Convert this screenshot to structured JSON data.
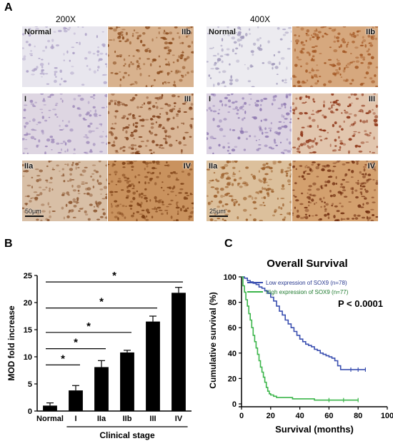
{
  "panel_a": {
    "letter": "A",
    "mag_left": "200X",
    "mag_right": "400X",
    "tiles_left": [
      {
        "label": "Normal",
        "side": "left",
        "color": "#e8e6ee",
        "stain": "#a99cc4",
        "density": 0.25
      },
      {
        "label": "IIb",
        "side": "right",
        "color": "#d8b28e",
        "stain": "#8a4a1c",
        "density": 0.65
      },
      {
        "label": "I",
        "side": "left",
        "color": "#ded6e2",
        "stain": "#9b86b8",
        "density": 0.45
      },
      {
        "label": "III",
        "side": "right",
        "color": "#d9b696",
        "stain": "#7a3a14",
        "density": 0.7
      },
      {
        "label": "IIa",
        "side": "left",
        "color": "#d8bfa6",
        "stain": "#8c5630",
        "density": 0.6
      },
      {
        "label": "IV",
        "side": "right",
        "color": "#c9925e",
        "stain": "#7a3d12",
        "density": 0.85
      }
    ],
    "tiles_right": [
      {
        "label": "Normal",
        "side": "left",
        "color": "#ecebf0",
        "stain": "#9d95b8",
        "density": 0.3
      },
      {
        "label": "IIb",
        "side": "right",
        "color": "#d6a87e",
        "stain": "#a0521e",
        "density": 0.75
      },
      {
        "label": "I",
        "side": "left",
        "color": "#dcd3e2",
        "stain": "#8e78b0",
        "density": 0.55
      },
      {
        "label": "III",
        "side": "right",
        "color": "#e2c6ae",
        "stain": "#8a2e10",
        "density": 0.6
      },
      {
        "label": "IIa",
        "side": "left",
        "color": "#dcc09c",
        "stain": "#9a5c28",
        "density": 0.7
      },
      {
        "label": "IV",
        "side": "right",
        "color": "#d3a06e",
        "stain": "#6e2a0c",
        "density": 0.9
      }
    ],
    "scale_left": "50μm",
    "scale_right": "25μm"
  },
  "chart_data": [
    {
      "type": "bar",
      "letter": "B",
      "categories": [
        "Normal",
        "I",
        "IIa",
        "IIb",
        "III",
        "IV"
      ],
      "values": [
        1.0,
        3.8,
        8.1,
        10.8,
        16.5,
        21.8
      ],
      "errors": [
        0.5,
        0.9,
        1.2,
        0.4,
        1.0,
        1.0
      ],
      "ylabel": "MOD fold increase",
      "xlabel": "Clinical stage",
      "ylim": [
        0,
        25
      ],
      "yticks": [
        0,
        5,
        10,
        15,
        20,
        25
      ],
      "significance": [
        {
          "from": "Normal",
          "to": "I",
          "label": "*"
        },
        {
          "from": "Normal",
          "to": "IIa",
          "label": "*"
        },
        {
          "from": "Normal",
          "to": "IIb",
          "label": "*"
        },
        {
          "from": "Normal",
          "to": "III",
          "label": "*"
        },
        {
          "from": "Normal",
          "to": "IV",
          "label": "*"
        }
      ],
      "bar_color": "#000000"
    },
    {
      "type": "line",
      "letter": "C",
      "title": "Overall Survival",
      "xlabel": "Survival (months)",
      "ylabel": "Cumulative survival (%)",
      "xlim": [
        0,
        100
      ],
      "ylim": [
        0,
        100
      ],
      "xticks": [
        0,
        20,
        40,
        60,
        80,
        100
      ],
      "yticks": [
        0,
        20,
        40,
        60,
        80,
        100
      ],
      "annotation": "P < 0.0001",
      "series": [
        {
          "name": "Low expression of SOX9 (n=78)",
          "color": "#3a4fb0",
          "x": [
            0,
            2,
            4,
            6,
            8,
            10,
            12,
            14,
            16,
            18,
            20,
            22,
            24,
            26,
            28,
            30,
            32,
            34,
            36,
            38,
            40,
            42,
            44,
            46,
            48,
            50,
            52,
            54,
            56,
            58,
            60,
            62,
            64,
            66,
            68,
            70,
            75,
            80,
            85
          ],
          "y": [
            100,
            99,
            97,
            96,
            95,
            94,
            92,
            91,
            89,
            87,
            84,
            81,
            77,
            73,
            70,
            66,
            63,
            60,
            57,
            54,
            51,
            49,
            47,
            46,
            45,
            43,
            42,
            40,
            39,
            38,
            37,
            36,
            34,
            30,
            27,
            27,
            27,
            27,
            27
          ]
        },
        {
          "name": "High expression of SOX9 (n=77)",
          "color": "#3bb54a",
          "x": [
            0,
            1,
            2,
            3,
            4,
            5,
            6,
            7,
            8,
            9,
            10,
            11,
            12,
            13,
            14,
            15,
            16,
            17,
            18,
            19,
            20,
            22,
            24,
            26,
            30,
            35,
            40,
            50,
            60,
            70,
            80
          ],
          "y": [
            100,
            93,
            88,
            82,
            77,
            71,
            66,
            60,
            54,
            49,
            44,
            39,
            34,
            29,
            25,
            21,
            17,
            13,
            10,
            8,
            7,
            6,
            5,
            5,
            5,
            4,
            4,
            3,
            3,
            3,
            3
          ]
        }
      ]
    }
  ]
}
